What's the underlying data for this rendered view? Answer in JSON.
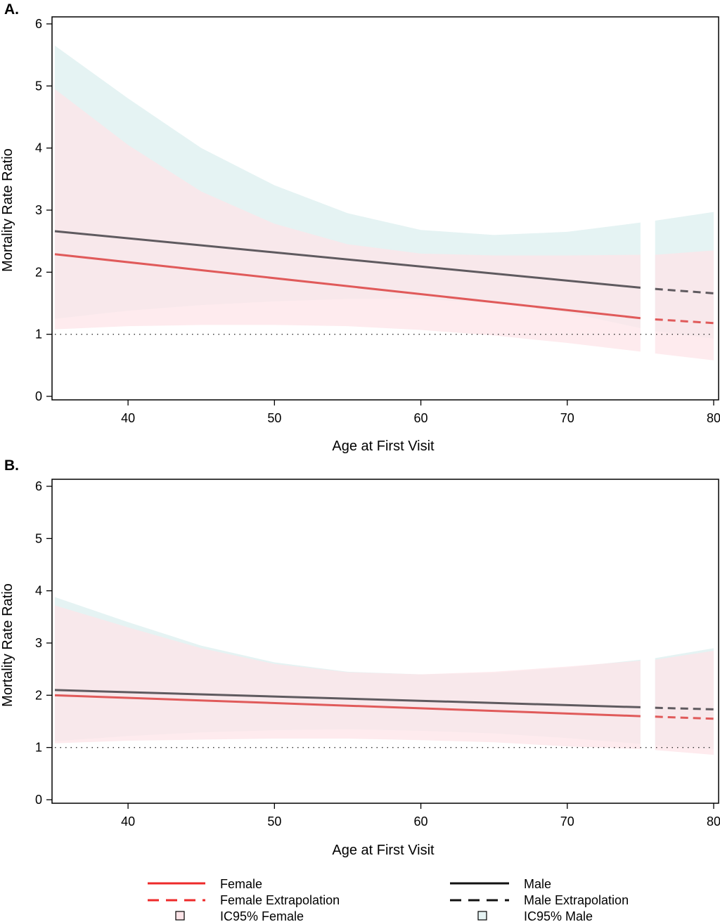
{
  "chart_data": [
    {
      "panel": "A.",
      "type": "line",
      "xlabel": "Age at First Visit",
      "ylabel": "Mortality Rate Ratio",
      "xlim": [
        35,
        80
      ],
      "ylim": [
        0,
        6
      ],
      "xticks": [
        40,
        50,
        60,
        70,
        80
      ],
      "yticks": [
        0,
        1,
        2,
        3,
        4,
        5,
        6
      ],
      "reference_line": 1,
      "observed_range": [
        35,
        75
      ],
      "extrapolation_range": [
        76,
        80
      ],
      "series": [
        {
          "name": "Male",
          "x": [
            35,
            75
          ],
          "y": [
            2.66,
            1.75
          ]
        },
        {
          "name": "Male Extrapolation",
          "x": [
            76,
            80
          ],
          "y": [
            1.73,
            1.66
          ]
        },
        {
          "name": "Female",
          "x": [
            35,
            75
          ],
          "y": [
            2.29,
            1.26
          ]
        },
        {
          "name": "Female Extrapolation",
          "x": [
            76,
            80
          ],
          "y": [
            1.24,
            1.18
          ]
        }
      ],
      "bands": [
        {
          "name": "IC95% Male",
          "x": [
            35,
            40,
            45,
            50,
            55,
            60,
            65,
            70,
            75,
            76,
            80
          ],
          "lower": [
            1.25,
            1.38,
            1.47,
            1.53,
            1.57,
            1.57,
            1.5,
            1.35,
            1.1,
            1.05,
            0.93
          ],
          "upper": [
            5.65,
            4.8,
            4.0,
            3.4,
            2.95,
            2.68,
            2.6,
            2.65,
            2.8,
            2.83,
            2.97
          ]
        },
        {
          "name": "IC95% Female",
          "x": [
            35,
            40,
            45,
            50,
            55,
            60,
            65,
            70,
            75,
            76,
            80
          ],
          "lower": [
            1.08,
            1.13,
            1.15,
            1.15,
            1.13,
            1.07,
            0.98,
            0.86,
            0.72,
            0.69,
            0.58
          ],
          "upper": [
            4.95,
            4.05,
            3.3,
            2.78,
            2.45,
            2.3,
            2.27,
            2.27,
            2.28,
            2.28,
            2.35
          ]
        }
      ]
    },
    {
      "panel": "B.",
      "type": "line",
      "xlabel": "Age at First Visit",
      "ylabel": "Mortality Rate Ratio",
      "xlim": [
        35,
        80
      ],
      "ylim": [
        0,
        6
      ],
      "xticks": [
        40,
        50,
        60,
        70,
        80
      ],
      "yticks": [
        0,
        1,
        2,
        3,
        4,
        5,
        6
      ],
      "reference_line": 1,
      "observed_range": [
        35,
        75
      ],
      "extrapolation_range": [
        76,
        80
      ],
      "series": [
        {
          "name": "Male",
          "x": [
            35,
            75
          ],
          "y": [
            2.1,
            1.77
          ]
        },
        {
          "name": "Male Extrapolation",
          "x": [
            76,
            80
          ],
          "y": [
            1.76,
            1.73
          ]
        },
        {
          "name": "Female",
          "x": [
            35,
            75
          ],
          "y": [
            2.0,
            1.6
          ]
        },
        {
          "name": "Female Extrapolation",
          "x": [
            76,
            80
          ],
          "y": [
            1.59,
            1.55
          ]
        }
      ],
      "bands": [
        {
          "name": "IC95% Male",
          "x": [
            35,
            40,
            45,
            50,
            55,
            60,
            65,
            70,
            75,
            76,
            80
          ],
          "lower": [
            1.12,
            1.22,
            1.29,
            1.33,
            1.35,
            1.32,
            1.27,
            1.18,
            1.07,
            1.04,
            0.97
          ],
          "upper": [
            3.88,
            3.4,
            2.95,
            2.63,
            2.45,
            2.4,
            2.43,
            2.53,
            2.68,
            2.71,
            2.9
          ]
        },
        {
          "name": "IC95% Female",
          "x": [
            35,
            40,
            45,
            50,
            55,
            60,
            65,
            70,
            75,
            76,
            80
          ],
          "lower": [
            1.08,
            1.13,
            1.15,
            1.17,
            1.17,
            1.14,
            1.1,
            1.02,
            0.97,
            0.95,
            0.86
          ],
          "upper": [
            3.72,
            3.3,
            2.9,
            2.6,
            2.44,
            2.4,
            2.45,
            2.55,
            2.66,
            2.68,
            2.85
          ]
        }
      ]
    }
  ],
  "legend": {
    "items": [
      {
        "label": "Female"
      },
      {
        "label": "Female Extrapolation"
      },
      {
        "label": "IC95% Female"
      },
      {
        "label": "Male"
      },
      {
        "label": "Male Extrapolation"
      },
      {
        "label": "IC95% Male"
      }
    ]
  },
  "colors": {
    "female": "#e05a5a",
    "male": "#5f5a5f",
    "female_band": "#fde4e8",
    "male_band": "#e5f3f3",
    "female_legend": "#ee2a2a",
    "male_legend": "#111111"
  }
}
